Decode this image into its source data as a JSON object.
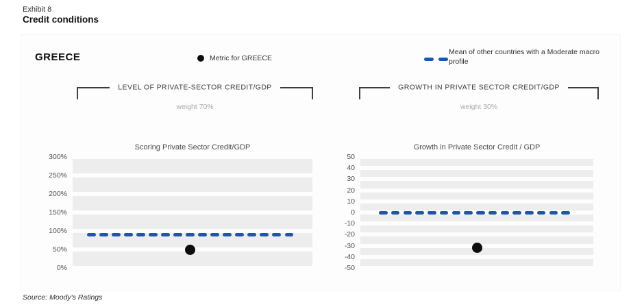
{
  "exhibit": {
    "label": "Exhibit 8",
    "title": "Credit conditions"
  },
  "country": "GREECE",
  "legend": {
    "metric_label": "Metric for GREECE",
    "mean_label": "Mean of other countries with a Moderate macro profile"
  },
  "sections": [
    {
      "header": "LEVEL OF PRIVATE-SECTOR CREDIT/GDP",
      "weight": "weight 70%"
    },
    {
      "header": "GROWTH IN PRIVATE SECTOR CREDIT/GDP",
      "weight": "weight 30%"
    }
  ],
  "source": "Source: Moody's Ratings",
  "colors": {
    "mean_line": "#2155A8",
    "metric_dot": "#0d0d0d",
    "band": "#ededed",
    "axis_text": "#4f4f4f",
    "weight_text": "#a9a9a9",
    "bracket": "#3d3d3d"
  },
  "chart_data": [
    {
      "type": "scatter",
      "title": "Scoring Private Sector Credit/GDP",
      "ylim": [
        0,
        300
      ],
      "ytick_values": [
        300,
        250,
        200,
        150,
        100,
        50,
        0
      ],
      "ytick_labels": [
        "300%",
        "250%",
        "200%",
        "150%",
        "100%",
        "50%",
        "0%"
      ],
      "grid": "horizontal-bands",
      "legend_position": "top",
      "weight": "70%",
      "dash_count": 17,
      "dash_inset_pct": [
        6,
        8
      ],
      "series": [
        {
          "name": "Mean of other countries with a Moderate macro profile",
          "style": "dashed-line",
          "value": 90
        },
        {
          "name": "Metric for GREECE",
          "style": "dot",
          "value": 50,
          "x_fraction": 0.49
        }
      ]
    },
    {
      "type": "scatter",
      "title": "Growth in Private Sector Credit / GDP",
      "ylim": [
        -50,
        50
      ],
      "ytick_values": [
        50,
        40,
        30,
        20,
        10,
        0,
        -10,
        -20,
        -30,
        -40,
        -50
      ],
      "ytick_labels": [
        "50",
        "40",
        "30",
        "20",
        "10",
        "0",
        "-10",
        "-20",
        "-30",
        "-40",
        "-50"
      ],
      "grid": "horizontal-bands",
      "legend_position": "top",
      "weight": "30%",
      "dash_count": 16,
      "dash_inset_pct": [
        8,
        10
      ],
      "series": [
        {
          "name": "Mean of other countries with a Moderate macro profile",
          "style": "dashed-line",
          "value": 0
        },
        {
          "name": "Metric for GREECE",
          "style": "dot",
          "value": -32,
          "x_fraction": 0.5
        }
      ]
    }
  ]
}
